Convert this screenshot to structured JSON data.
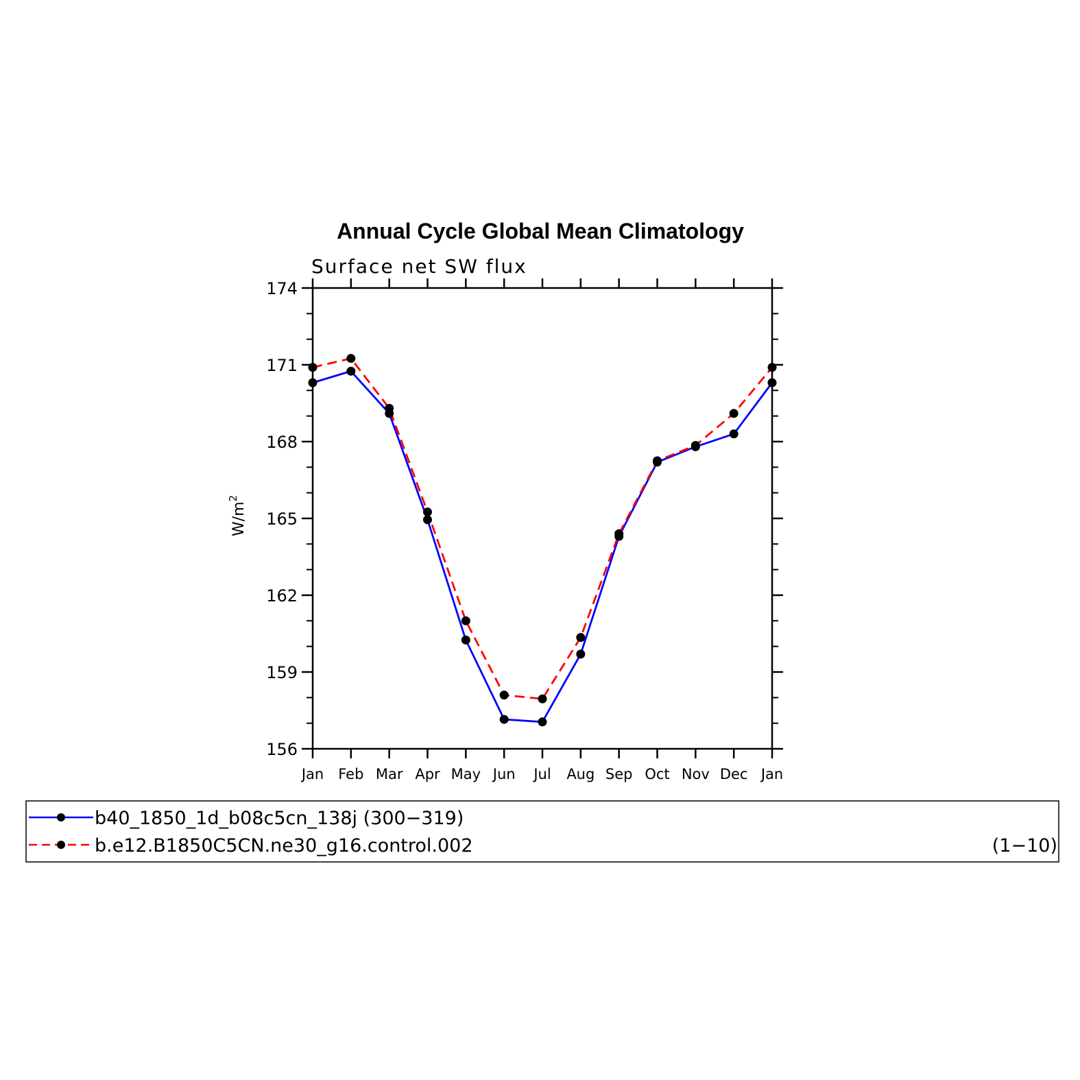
{
  "chart_data": {
    "type": "line",
    "title": "Annual Cycle Global Mean Climatology",
    "subtitle": "Surface net SW flux",
    "ylabel_base": "W/m",
    "ylabel_sup": "2",
    "categories": [
      "Jan",
      "Feb",
      "Mar",
      "Apr",
      "May",
      "Jun",
      "Jul",
      "Aug",
      "Sep",
      "Oct",
      "Nov",
      "Dec",
      "Jan"
    ],
    "ylim": [
      156,
      174
    ],
    "yticks": [
      156,
      159,
      162,
      165,
      168,
      171,
      174
    ],
    "series": [
      {
        "name": "b40_1850_1d_b08c5cn_138j (300−319)",
        "color": "#0000ff",
        "dash": "solid",
        "values": [
          170.3,
          170.75,
          169.1,
          164.95,
          160.25,
          157.15,
          157.05,
          159.7,
          164.3,
          167.2,
          167.8,
          168.3,
          170.3
        ]
      },
      {
        "name": "b.e12.B1850C5CN.ne30_g16.control.002",
        "range_label": "(1−10)",
        "color": "#ff0000",
        "dash": "dashed",
        "values": [
          170.9,
          171.25,
          169.3,
          165.25,
          161.0,
          158.1,
          157.95,
          160.35,
          164.4,
          167.25,
          167.85,
          169.1,
          170.9
        ]
      }
    ],
    "marker_color": "#000000"
  }
}
